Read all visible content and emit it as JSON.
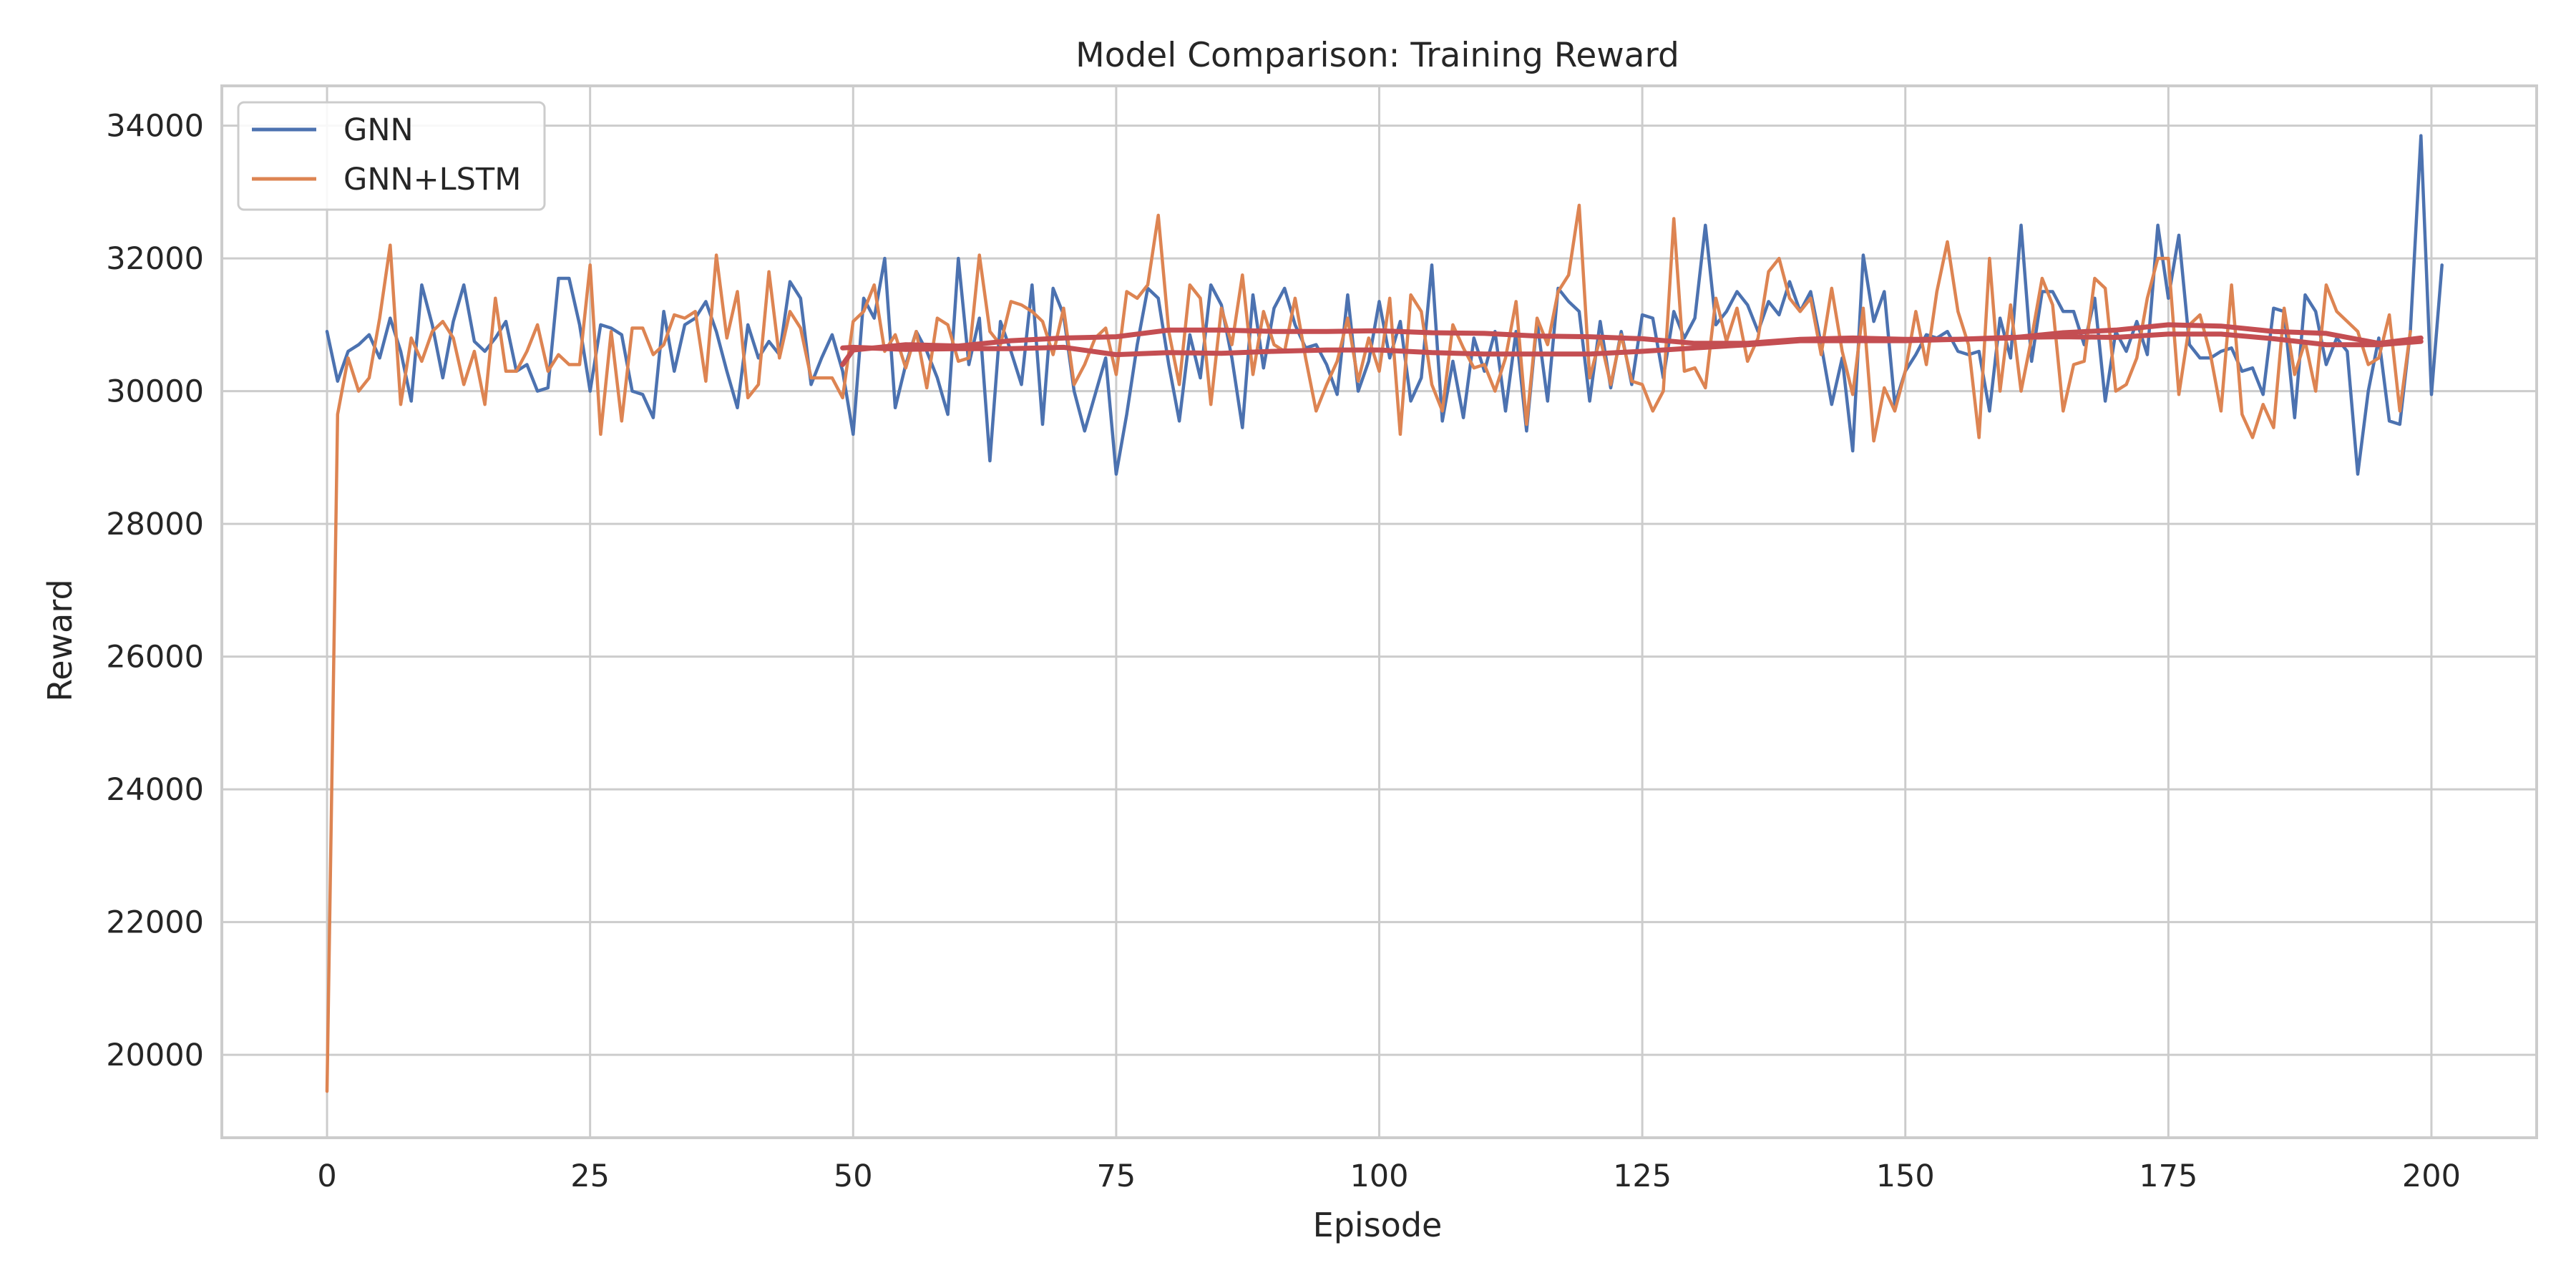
{
  "chart_data": {
    "type": "line",
    "title": "Model Comparison: Training Reward",
    "xlabel": "Episode",
    "ylabel": "Reward",
    "xlim": [
      -10,
      210
    ],
    "ylim": [
      18750,
      34600
    ],
    "xticks": [
      0,
      25,
      50,
      75,
      100,
      125,
      150,
      175,
      200
    ],
    "yticks": [
      20000,
      22000,
      24000,
      26000,
      28000,
      30000,
      32000,
      34000
    ],
    "grid": true,
    "legend_position": "top-left",
    "colors": {
      "GNN": "#4c72b0",
      "GNN+LSTM": "#dd8452",
      "moving_average": "#c44e52",
      "grid": "#cccccc",
      "frame": "#cccccc"
    },
    "series": [
      {
        "name": "GNN",
        "x_start": 0,
        "values": [
          30900,
          30150,
          30600,
          30700,
          30850,
          30500,
          31100,
          30600,
          29850,
          31600,
          31000,
          30200,
          31050,
          31600,
          30750,
          30600,
          30800,
          31050,
          30300,
          30400,
          30000,
          30050,
          31700,
          31700,
          31000,
          30000,
          31000,
          30950,
          30850,
          30000,
          29950,
          29600,
          31200,
          30300,
          31000,
          31100,
          31350,
          30900,
          30300,
          29750,
          31000,
          30500,
          30750,
          30550,
          31650,
          31400,
          30100,
          30500,
          30850,
          30300,
          29350,
          31400,
          31100,
          32000,
          29750,
          30400,
          30900,
          30600,
          30200,
          29650,
          32000,
          30400,
          31100,
          28950,
          31050,
          30600,
          30100,
          31600,
          29500,
          31550,
          31150,
          30000,
          29400,
          29950,
          30500,
          28750,
          29650,
          30700,
          31550,
          31400,
          30400,
          29550,
          30850,
          30200,
          31600,
          31300,
          30500,
          29450,
          31450,
          30350,
          31250,
          31550,
          31000,
          30650,
          30700,
          30400,
          29950,
          31450,
          30000,
          30450,
          31350,
          30500,
          31050,
          29850,
          30200,
          31900,
          29550,
          30450,
          29600,
          30800,
          30300,
          30900,
          29700,
          30900,
          29400,
          31050,
          29850,
          31550,
          31350,
          31200,
          29850,
          31050,
          30050,
          30900,
          30100,
          31150,
          31100,
          30200,
          31200,
          30800,
          31100,
          32500,
          31000,
          31200,
          31500,
          31300,
          30900,
          31350,
          31150,
          31650,
          31200,
          31500,
          30700,
          29800,
          30500,
          29100,
          32050,
          31050,
          31500,
          29800,
          30300,
          30550,
          30850,
          30800,
          30900,
          30600,
          30550,
          30600,
          29700,
          31100,
          30500,
          32500,
          30450,
          31500,
          31500,
          31200,
          31200,
          30700,
          31400,
          29850,
          30900,
          30600,
          31050,
          30550,
          32500,
          31400,
          32350,
          30700,
          30500,
          30500,
          30600,
          30650,
          30300,
          30350,
          29950,
          31250,
          31200,
          29600,
          31450,
          31200,
          30400,
          30800,
          30600,
          28750,
          30000,
          30800,
          29550,
          29500,
          30900,
          33850,
          29950,
          31900
        ]
      },
      {
        "name": "GNN+LSTM",
        "x_start": 0,
        "values": [
          19450,
          29650,
          30500,
          30000,
          30200,
          31100,
          32200,
          29800,
          30800,
          30450,
          30900,
          31050,
          30800,
          30100,
          30600,
          29800,
          31400,
          30300,
          30300,
          30600,
          31000,
          30300,
          30550,
          30400,
          30400,
          31900,
          29350,
          30900,
          29550,
          30950,
          30950,
          30550,
          30700,
          31150,
          31100,
          31200,
          30150,
          32050,
          30800,
          31500,
          29900,
          30100,
          31800,
          30500,
          31200,
          30950,
          30200,
          30200,
          30200,
          29900,
          31050,
          31200,
          31600,
          30600,
          30850,
          30350,
          30900,
          30050,
          31100,
          31000,
          30450,
          30500,
          32050,
          30900,
          30700,
          31350,
          31300,
          31200,
          31050,
          30550,
          31250,
          30100,
          30400,
          30800,
          30950,
          30250,
          31500,
          31400,
          31600,
          32650,
          30900,
          30100,
          31600,
          31400,
          29800,
          31250,
          30700,
          31750,
          30250,
          31200,
          30700,
          30600,
          31400,
          30500,
          29700,
          30100,
          30450,
          31100,
          30150,
          30800,
          30300,
          31400,
          29350,
          31450,
          31200,
          30100,
          29700,
          31000,
          30650,
          30350,
          30400,
          30000,
          30500,
          31350,
          29500,
          31100,
          30700,
          31500,
          31750,
          32800,
          30200,
          30800,
          30100,
          30850,
          30150,
          30100,
          29700,
          30000,
          32600,
          30300,
          30350,
          30050,
          31400,
          30750,
          31250,
          30450,
          30800,
          31800,
          32000,
          31400,
          31200,
          31400,
          30550,
          31550,
          30600,
          29950,
          31250,
          29250,
          30050,
          29700,
          30300,
          31200,
          30400,
          31500,
          32250,
          31200,
          30700,
          29300,
          32000,
          30000,
          31300,
          30000,
          30800,
          31700,
          31300,
          29700,
          30400,
          30450,
          31700,
          31550,
          30000,
          30100,
          30500,
          31400,
          32000,
          32000,
          29950,
          31000,
          31150,
          30550,
          29700,
          31600,
          29650,
          29300,
          29800,
          29450,
          31250,
          30250,
          30750,
          30000,
          31600,
          31200,
          31050,
          30900,
          30400,
          30500,
          31150,
          29700,
          30900
        ]
      },
      {
        "name": "",
        "x": [
          49,
          50,
          55,
          60,
          65,
          70,
          75,
          80,
          85,
          90,
          95,
          100,
          105,
          110,
          115,
          120,
          125,
          130,
          135,
          140,
          145,
          150,
          155,
          160,
          165,
          170,
          175,
          180,
          185,
          190,
          195,
          199
        ],
        "values": [
          30400,
          30620,
          30700,
          30680,
          30760,
          30800,
          30820,
          30920,
          30920,
          30900,
          30900,
          30910,
          30880,
          30870,
          30830,
          30820,
          30790,
          30720,
          30720,
          30780,
          30800,
          30780,
          30780,
          30810,
          30820,
          30810,
          30860,
          30860,
          30790,
          30700,
          30700,
          30750
        ]
      },
      {
        "name": "",
        "x": [
          49,
          50,
          55,
          60,
          65,
          70,
          75,
          80,
          85,
          90,
          95,
          100,
          105,
          110,
          115,
          120,
          125,
          130,
          135,
          140,
          145,
          150,
          155,
          160,
          165,
          170,
          175,
          180,
          185,
          190,
          195,
          199
        ],
        "values": [
          30650,
          30660,
          30630,
          30640,
          30640,
          30660,
          30550,
          30580,
          30570,
          30600,
          30620,
          30620,
          30580,
          30560,
          30560,
          30560,
          30600,
          30650,
          30700,
          30760,
          30760,
          30760,
          30780,
          30800,
          30880,
          30920,
          31000,
          30980,
          30900,
          30870,
          30720,
          30800
        ]
      }
    ]
  }
}
